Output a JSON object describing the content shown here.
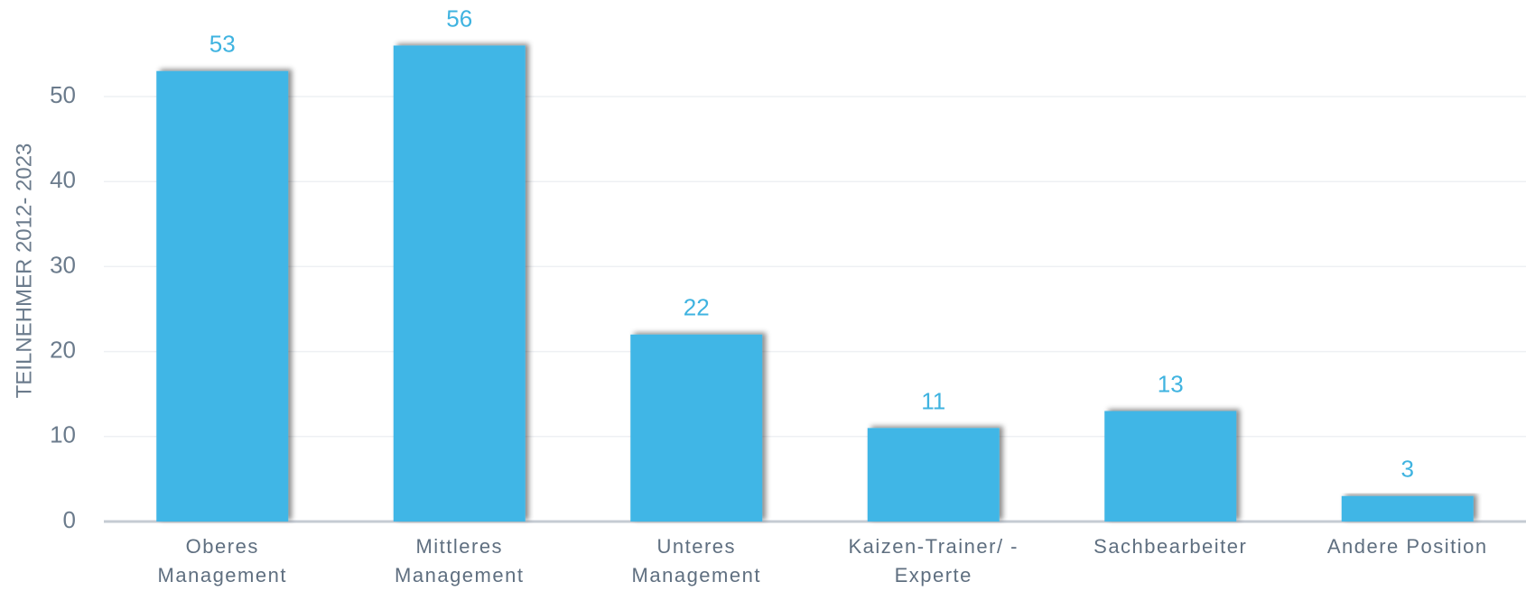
{
  "chart_data": {
    "type": "bar",
    "y_label": "TEILNEHMER 2012- 2023",
    "categories": [
      "Oberes Management",
      "Mittleres Management",
      "Unteres Management",
      "Kaizen-Trainer/ -Experte",
      "Sachbearbeiter",
      "Andere Position"
    ],
    "values": [
      53,
      56,
      22,
      11,
      13,
      3
    ],
    "color": "#41b6e6",
    "ylim": [
      0,
      60
    ],
    "yticks": [
      0,
      10,
      20,
      30,
      40,
      50
    ],
    "grid": true
  }
}
